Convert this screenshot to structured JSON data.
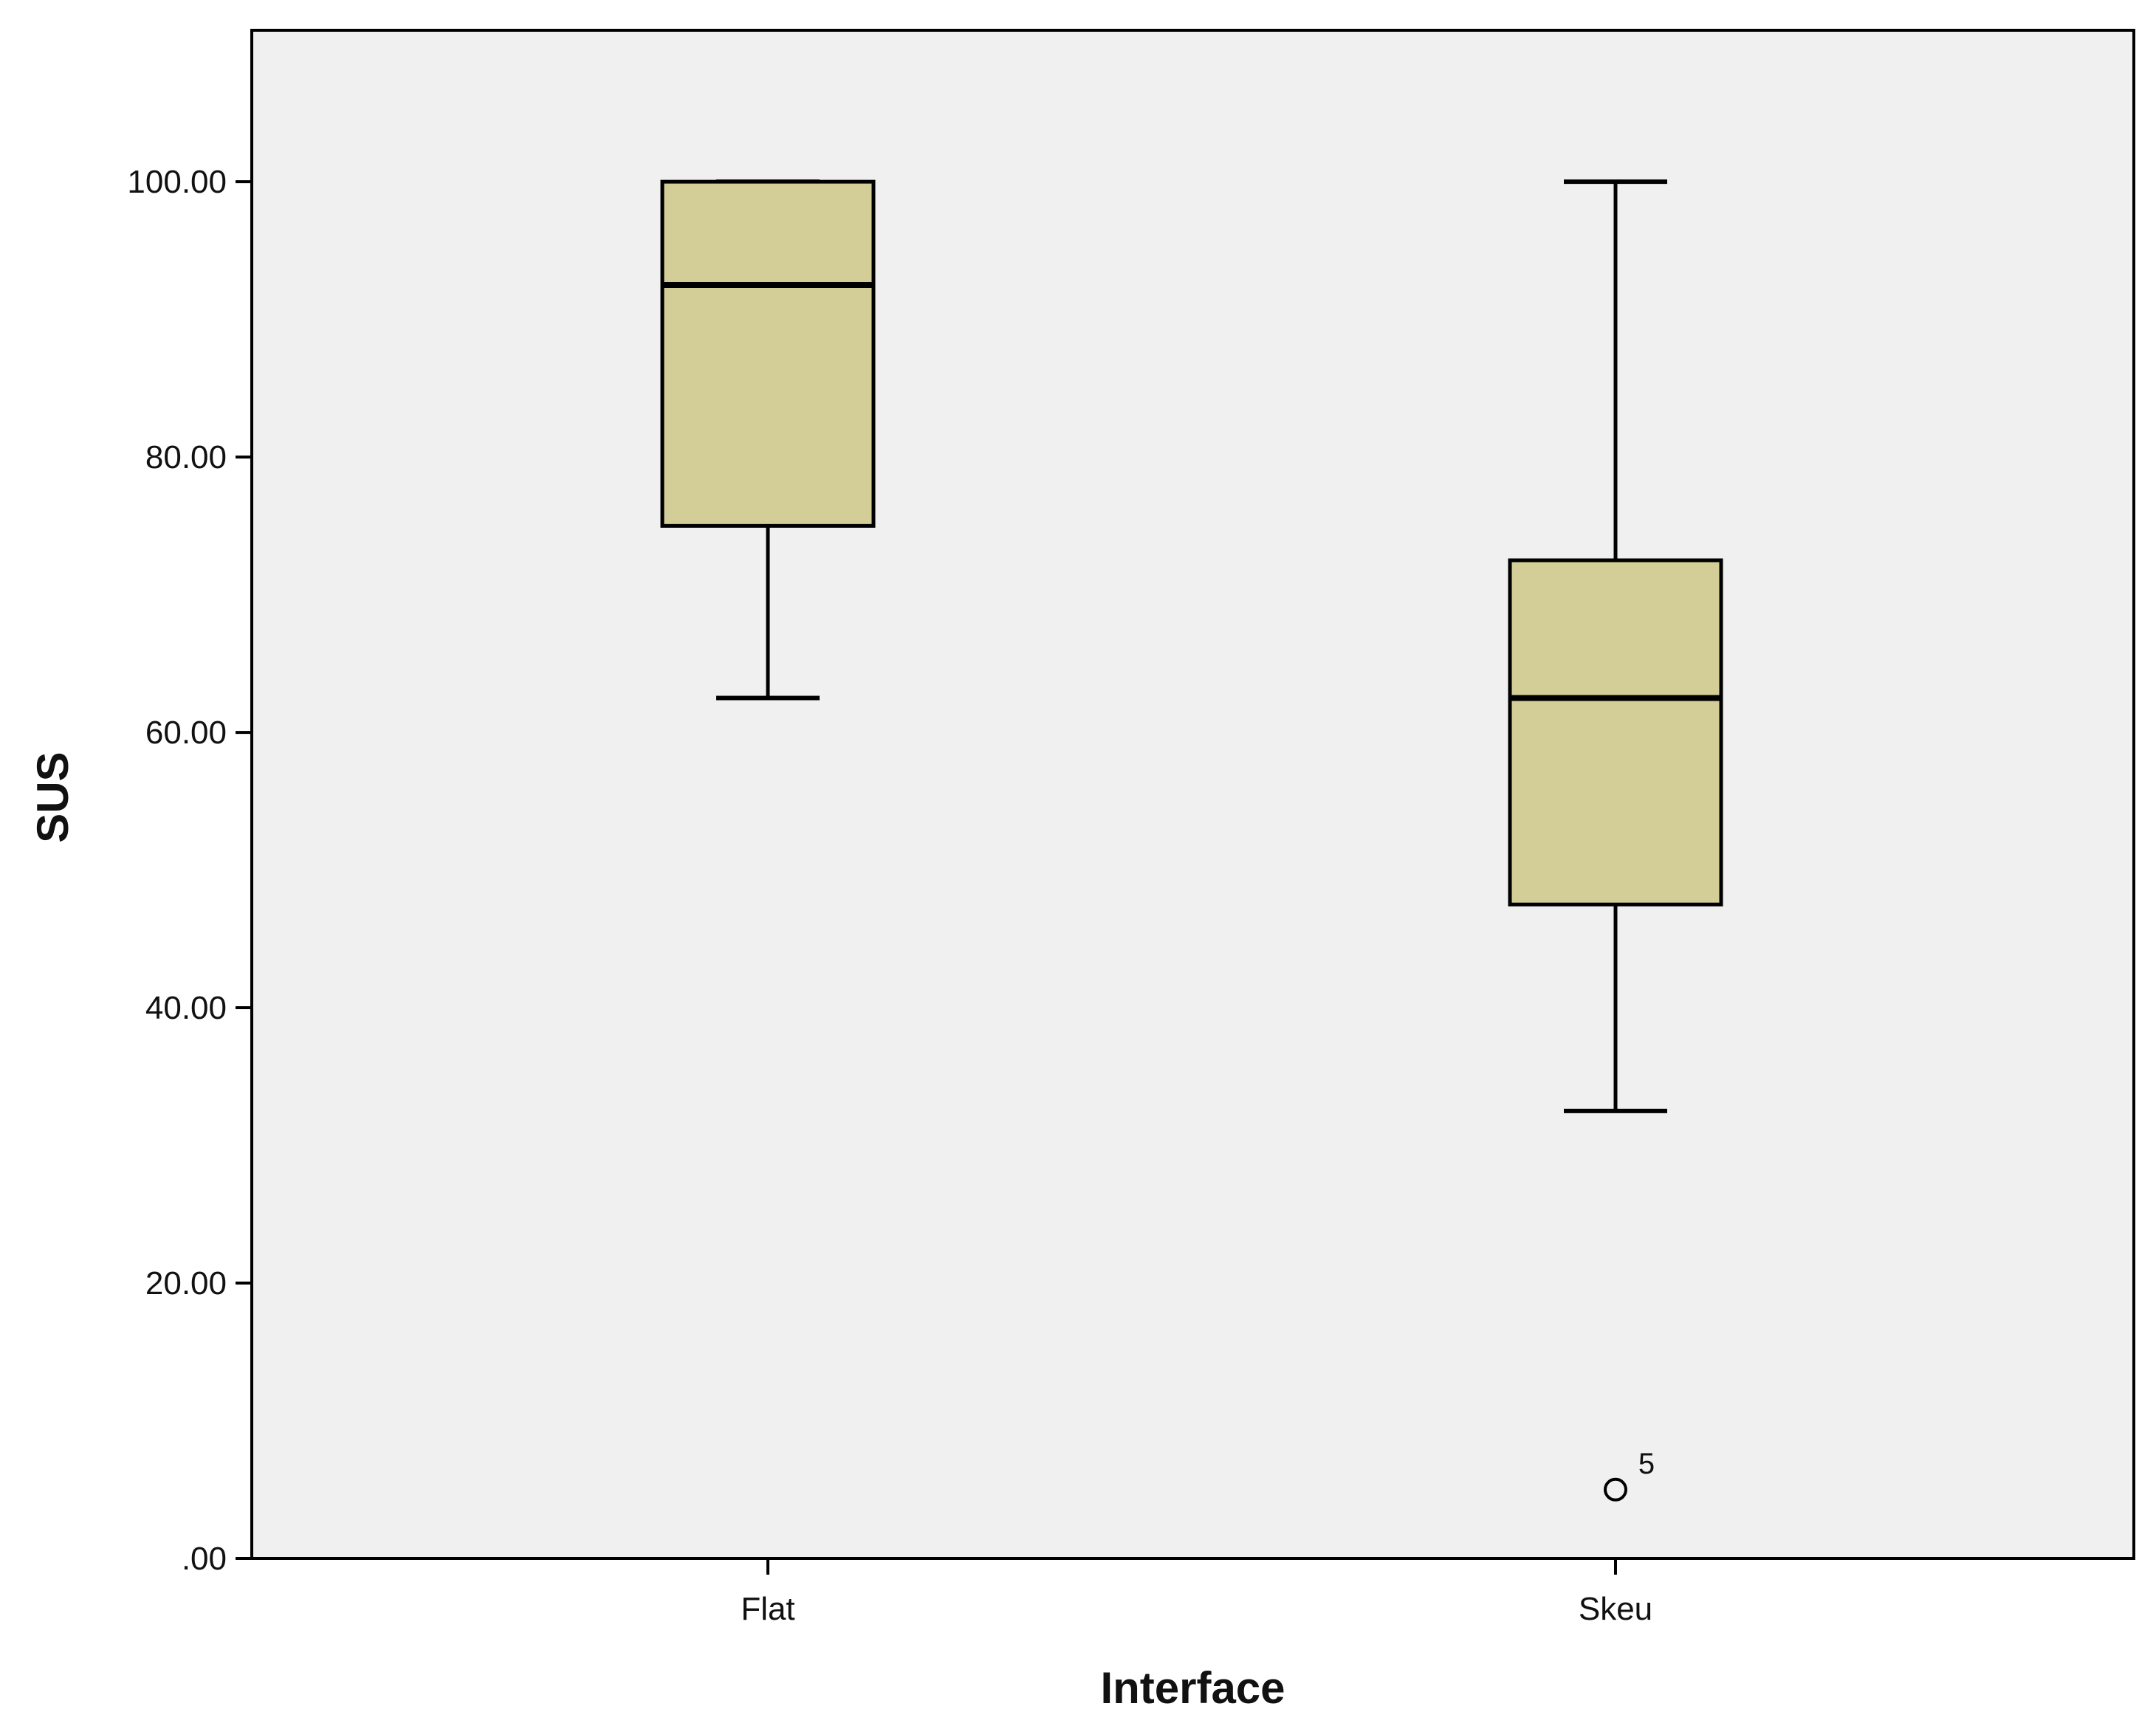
{
  "chart_data": {
    "type": "box",
    "title": "",
    "xlabel": "Interface",
    "ylabel": "SUS",
    "ylim": [
      0,
      111
    ],
    "y_ticks": [
      0,
      20,
      40,
      60,
      80,
      100
    ],
    "y_tick_labels": [
      ".00",
      "20.00",
      "40.00",
      "60.00",
      "80.00",
      "100.00"
    ],
    "categories": [
      "Flat",
      "Skeu"
    ],
    "boxes": [
      {
        "category": "Flat",
        "whisker_low": 62.5,
        "q1": 75,
        "median": 92.5,
        "q3": 100,
        "whisker_high": 100,
        "outliers": []
      },
      {
        "category": "Skeu",
        "whisker_low": 32.5,
        "q1": 47.5,
        "median": 62.5,
        "q3": 72.5,
        "whisker_high": 100,
        "outliers": [
          {
            "value": 5,
            "label": "5"
          }
        ]
      }
    ],
    "grid": false,
    "colors": {
      "plot_background": "#f0f0f0",
      "box_fill": "#d3cd98",
      "line": "#000000",
      "page_background": "#ffffff"
    }
  }
}
